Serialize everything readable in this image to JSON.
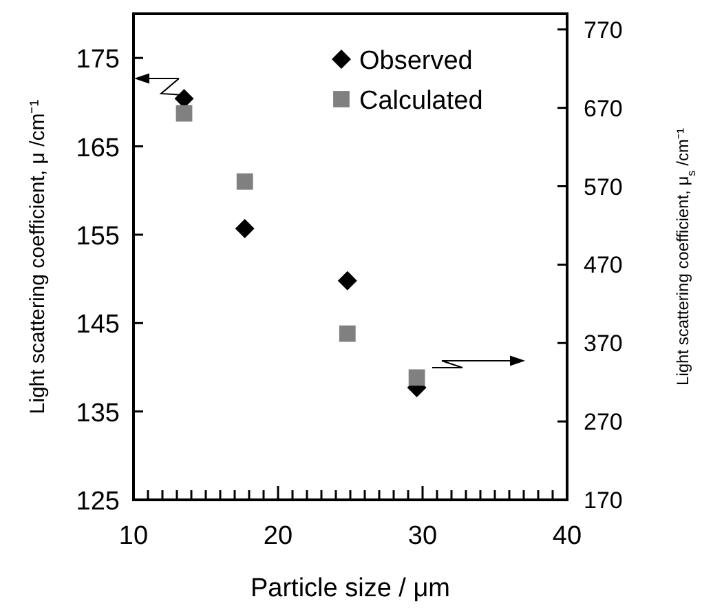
{
  "chart_data": {
    "type": "scatter",
    "xlabel": "Particle size / μm",
    "ylabel": "Light scattering coefficient, μ /cm⁻¹",
    "y2label": "Light scattering coefficient, μ$_{s}$ /cm⁻¹",
    "xlim": [
      10,
      40
    ],
    "xticks": [
      10,
      {
        "value": 11,
        "label": null
      },
      {
        "value": 12,
        "label": null
      },
      {
        "value": 13,
        "label": null
      },
      {
        "value": 14,
        "label": null
      },
      {
        "value": 15,
        "label": null
      },
      {
        "value": 16,
        "label": null
      },
      {
        "value": 17,
        "label": null
      },
      {
        "value": 18,
        "label": null
      },
      {
        "value": 19,
        "label": null
      },
      20,
      {
        "value": 21,
        "label": null
      },
      {
        "value": 22,
        "label": null
      },
      {
        "value": 23,
        "label": null
      },
      {
        "value": 24,
        "label": null
      },
      {
        "value": 25,
        "label": null
      },
      {
        "value": 26,
        "label": null
      },
      {
        "value": 27,
        "label": null
      },
      {
        "value": 28,
        "label": null
      },
      {
        "value": 29,
        "label": null
      },
      30,
      {
        "value": 31,
        "label": null
      },
      {
        "value": 32,
        "label": null
      },
      {
        "value": 33,
        "label": null
      },
      {
        "value": 34,
        "label": null
      },
      {
        "value": 35,
        "label": null
      },
      {
        "value": 36,
        "label": null
      },
      {
        "value": 37,
        "label": null
      },
      {
        "value": 38,
        "label": null
      },
      {
        "value": 39,
        "label": null
      },
      40
    ],
    "ylim": [
      125,
      180
    ],
    "yticks": [
      125,
      135,
      145,
      155,
      165,
      175
    ],
    "y2lim": [
      170,
      790
    ],
    "y2ticks": [
      170,
      270,
      370,
      470,
      570,
      670,
      770
    ],
    "grid": false,
    "legend": "top right",
    "series": [
      {
        "name": "Observed",
        "color": "#000000",
        "marker": "diamond",
        "x": [
          13.5,
          17.7,
          24.8,
          29.6
        ],
        "values": [
          170.4,
          155.7,
          149.8,
          137.7
        ]
      },
      {
        "name": "Calculated",
        "color": "#808080",
        "marker": "square",
        "axis": "y2",
        "x": [
          13.5,
          17.7,
          24.8,
          29.6
        ],
        "values": [
          663,
          576,
          382,
          326
        ]
      }
    ]
  }
}
